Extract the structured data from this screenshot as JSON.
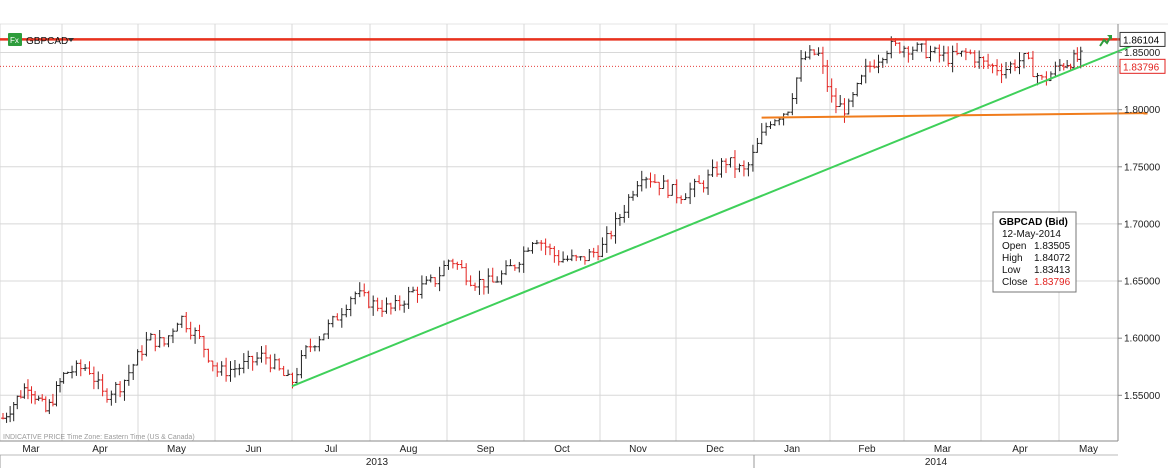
{
  "header": {
    "symbol": "GBPCAD",
    "symbol_badge": "Fx",
    "dropdown_icon": "caret-down-icon",
    "trend_icon": "trend-arrow-icon"
  },
  "footer": {
    "text": "INDICATIVE PRICE   Time Zone: Eastern Time (US & Canada)"
  },
  "tooltip": {
    "title": "GBPCAD (Bid)",
    "date": "12-May-2014",
    "rows": [
      {
        "label": "Open",
        "value": "1.83505"
      },
      {
        "label": "High",
        "value": "1.84072"
      },
      {
        "label": "Low",
        "value": "1.83413"
      },
      {
        "label": "Close",
        "value": "1.83796"
      }
    ]
  },
  "price_tags": [
    {
      "value": "1.86104",
      "border_color": "#333333",
      "text_color": "#000000"
    },
    {
      "value": "1.83796",
      "border_color": "#e2221f",
      "text_color": "#e2221f"
    }
  ],
  "colors": {
    "up_bar": "#222222",
    "down_bar": "#e2221f",
    "resistance_line": "#e8321e",
    "trend_line": "#3fd05a",
    "support_line": "#f07c1c",
    "close_dotted": "#e2221f",
    "grid": "#d8d8d8"
  },
  "chart_data": {
    "type": "bar",
    "subtype": "ohlc",
    "series_name": "GBPCAD (Bid)",
    "y_axis": {
      "min": 1.51,
      "max": 1.875,
      "position": "right",
      "ticks": [
        {
          "value": 1.55,
          "label": "1.55000"
        },
        {
          "value": 1.6,
          "label": "1.60000"
        },
        {
          "value": 1.65,
          "label": "1.65000"
        },
        {
          "value": 1.7,
          "label": "1.70000"
        },
        {
          "value": 1.75,
          "label": "1.75000"
        },
        {
          "value": 1.8,
          "label": "1.80000"
        },
        {
          "value": 1.85,
          "label": "1.85000"
        }
      ]
    },
    "x_axis": {
      "months": [
        "Mar",
        "Apr",
        "May",
        "Jun",
        "Jul",
        "Aug",
        "Sep",
        "Oct",
        "Nov",
        "Dec",
        "Jan",
        "Feb",
        "Mar",
        "Apr",
        "May"
      ],
      "years": [
        {
          "label": "2013",
          "start_month": 0,
          "end_month": 10
        },
        {
          "label": "2014",
          "start_month": 10,
          "end_month": 15
        }
      ]
    },
    "grid": true,
    "price_path": [
      [
        0,
        1.53
      ],
      [
        0.8,
        1.56
      ],
      [
        1.4,
        1.535
      ],
      [
        2.0,
        1.57
      ],
      [
        2.6,
        1.575
      ],
      [
        3.0,
        1.55
      ],
      [
        3.5,
        1.56
      ],
      [
        4.2,
        1.6
      ],
      [
        4.6,
        1.595
      ],
      [
        5.0,
        1.62
      ],
      [
        5.5,
        1.6
      ],
      [
        6.0,
        1.57
      ],
      [
        6.6,
        1.575
      ],
      [
        7.2,
        1.585
      ],
      [
        7.9,
        1.56
      ],
      [
        8.3,
        1.59
      ],
      [
        9.0,
        1.615
      ],
      [
        9.5,
        1.64
      ],
      [
        10.0,
        1.63
      ],
      [
        10.5,
        1.625
      ],
      [
        11.0,
        1.64
      ],
      [
        11.6,
        1.65
      ],
      [
        12.0,
        1.67
      ],
      [
        12.6,
        1.65
      ],
      [
        13.1,
        1.648
      ],
      [
        13.7,
        1.665
      ],
      [
        14.2,
        1.69
      ],
      [
        14.8,
        1.67
      ],
      [
        15.4,
        1.668
      ],
      [
        16.0,
        1.68
      ],
      [
        16.5,
        1.71
      ],
      [
        17.0,
        1.745
      ],
      [
        17.5,
        1.735
      ],
      [
        18.0,
        1.725
      ],
      [
        18.6,
        1.735
      ],
      [
        19.2,
        1.755
      ],
      [
        19.7,
        1.745
      ],
      [
        20.3,
        1.79
      ],
      [
        20.8,
        1.8
      ],
      [
        21.2,
        1.845
      ],
      [
        21.6,
        1.85
      ],
      [
        22.0,
        1.805
      ],
      [
        22.4,
        1.8
      ],
      [
        22.9,
        1.835
      ],
      [
        23.5,
        1.855
      ],
      [
        24.0,
        1.855
      ],
      [
        24.6,
        1.85
      ],
      [
        25.1,
        1.845
      ],
      [
        25.6,
        1.85
      ],
      [
        26.0,
        1.84
      ],
      [
        26.5,
        1.835
      ],
      [
        27.0,
        1.845
      ],
      [
        27.5,
        1.825
      ],
      [
        28.0,
        1.84
      ],
      [
        28.6,
        1.845
      ],
      [
        29.2,
        1.852
      ],
      [
        29.7,
        1.846
      ],
      [
        30.2,
        1.835
      ],
      [
        30.5,
        1.838
      ]
    ],
    "lines": [
      {
        "name": "resistance",
        "x1": 0,
        "y1": 1.8615,
        "x2": 31.0,
        "y2": 1.8615
      },
      {
        "name": "trend",
        "x1": 8.0,
        "y1": 1.558,
        "x2": 31.0,
        "y2": 1.8615
      },
      {
        "name": "support",
        "x1": 20.2,
        "y1": 1.793,
        "x2": 31.0,
        "y2": 1.797
      },
      {
        "name": "last-close",
        "x1": 0,
        "y1": 1.83796,
        "x2": 31.0,
        "y2": 1.83796
      }
    ],
    "last": {
      "date": "12-May-2014",
      "open": 1.83505,
      "high": 1.84072,
      "low": 1.83413,
      "close": 1.83796
    }
  }
}
